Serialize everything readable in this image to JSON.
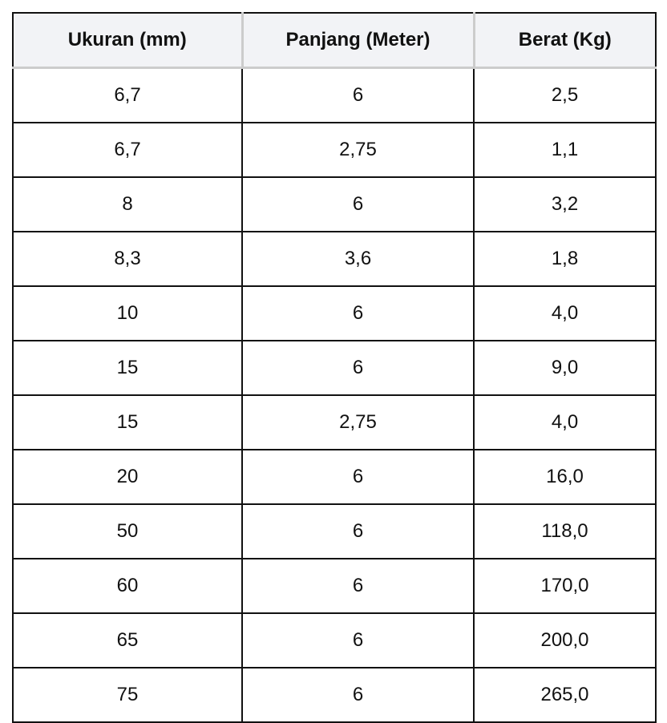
{
  "table": {
    "headers": [
      "Ukuran (mm)",
      "Panjang (Meter)",
      "Berat (Kg)"
    ],
    "rows": [
      [
        "6,7",
        "6",
        "2,5"
      ],
      [
        "6,7",
        "2,75",
        "1,1"
      ],
      [
        "8",
        "6",
        "3,2"
      ],
      [
        "8,3",
        "3,6",
        "1,8"
      ],
      [
        "10",
        "6",
        "4,0"
      ],
      [
        "15",
        "6",
        "9,0"
      ],
      [
        "15",
        "2,75",
        "4,0"
      ],
      [
        "20",
        "6",
        "16,0"
      ],
      [
        "50",
        "6",
        "118,0"
      ],
      [
        "60",
        "6",
        "170,0"
      ],
      [
        "65",
        "6",
        "200,0"
      ],
      [
        "75",
        "6",
        "265,0"
      ]
    ]
  }
}
